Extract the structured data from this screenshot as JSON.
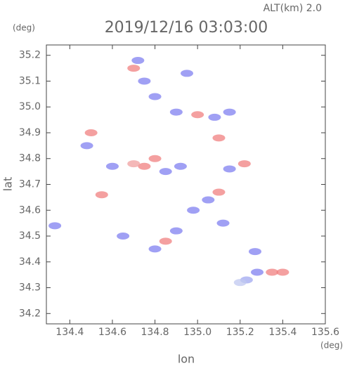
{
  "chart_data": {
    "type": "scatter",
    "title": "2019/12/16 03:03:00",
    "subtitle": "ALT(km) 2.0",
    "y_unit": "(deg)",
    "x_unit": "(deg)",
    "ylabel": "lat",
    "xlabel": "lon",
    "xlim": [
      134.29,
      135.6
    ],
    "ylim": [
      34.16,
      35.24
    ],
    "xticks": [
      134.4,
      134.6,
      134.8,
      {
        "value": 135,
        "label": "135.0"
      },
      135.2,
      135.4,
      135.6
    ],
    "yticks": [
      34.2,
      34.3,
      34.4,
      34.5,
      34.6,
      34.7,
      34.8,
      34.9,
      {
        "value": 35,
        "label": "35.0"
      },
      35.1,
      35.2
    ],
    "x": [
      134.33,
      135.23,
      135.28,
      135.35,
      135.4,
      135.2,
      135.27,
      134.75,
      134.7,
      134.6,
      134.8,
      134.85,
      134.92,
      135.22,
      135.15,
      135.05,
      135.1,
      134.98,
      135.12,
      135.0,
      135.08,
      134.9,
      135.15,
      134.8,
      134.75,
      134.95,
      134.7,
      134.72,
      134.48,
      134.5,
      134.65,
      134.85,
      134.9,
      134.8,
      134.55,
      135.1
    ],
    "y": [
      34.54,
      34.33,
      34.36,
      34.36,
      34.36,
      34.32,
      34.44,
      34.77,
      34.78,
      34.77,
      34.8,
      34.75,
      34.77,
      34.78,
      34.76,
      34.64,
      34.67,
      34.6,
      34.55,
      34.97,
      34.96,
      34.98,
      34.98,
      35.04,
      35.1,
      35.13,
      35.15,
      35.18,
      34.85,
      34.9,
      34.5,
      34.48,
      34.52,
      34.45,
      34.66,
      34.88
    ],
    "colors": [
      "#8080f0",
      "#a0a8f0",
      "#8080f0",
      "#f08080",
      "#f08080",
      "#c0c8f0",
      "#8080f0",
      "#f08080",
      "#f0a0a0",
      "#8080f0",
      "#f08080",
      "#8080f0",
      "#8080f0",
      "#f08080",
      "#8080f0",
      "#8080f0",
      "#f08080",
      "#8080f0",
      "#8080f0",
      "#f08080",
      "#8080f0",
      "#8080f0",
      "#8080f0",
      "#8080f0",
      "#8080f0",
      "#8080f0",
      "#f08080",
      "#8080f0",
      "#8080f0",
      "#f08080",
      "#8080f0",
      "#f08080",
      "#8080f0",
      "#8080f0",
      "#f08080",
      "#f08080"
    ]
  }
}
